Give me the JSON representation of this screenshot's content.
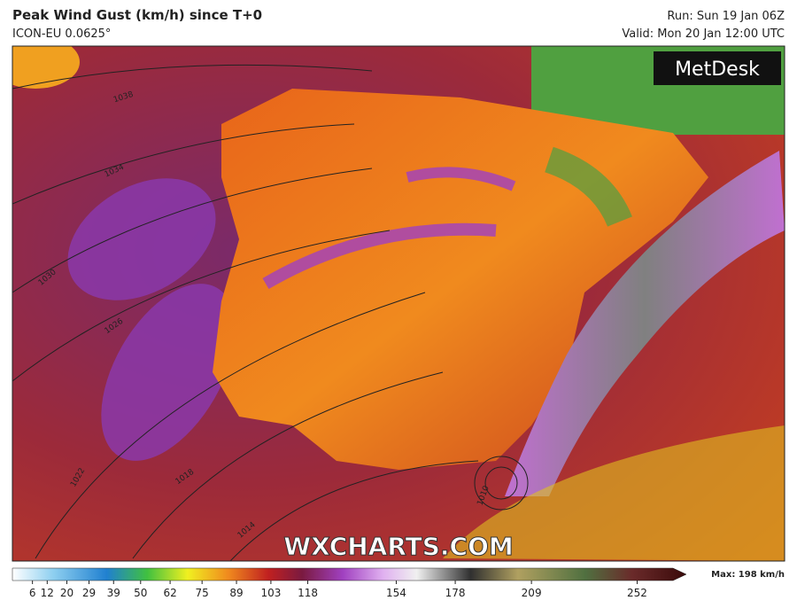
{
  "header": {
    "title": "Peak Wind Gust (km/h) since T+0",
    "subtitle": "ICON-EU 0.0625°",
    "run": "Run: Sun 19 Jan 06Z",
    "valid": "Valid: Mon 20 Jan 12:00 UTC"
  },
  "brand": "MetDesk",
  "watermark": "WXCHARTS.COM",
  "isobar_labels": [
    1038,
    1034,
    1030,
    1026,
    1022,
    1018,
    1014,
    1010
  ],
  "colorbar": {
    "lim": [
      0,
      272
    ],
    "ticks": [
      6,
      12,
      20,
      29,
      39,
      50,
      62,
      75,
      89,
      103,
      118,
      154,
      178,
      209,
      252
    ],
    "max_label": "Max: 198 km/h"
  }
}
